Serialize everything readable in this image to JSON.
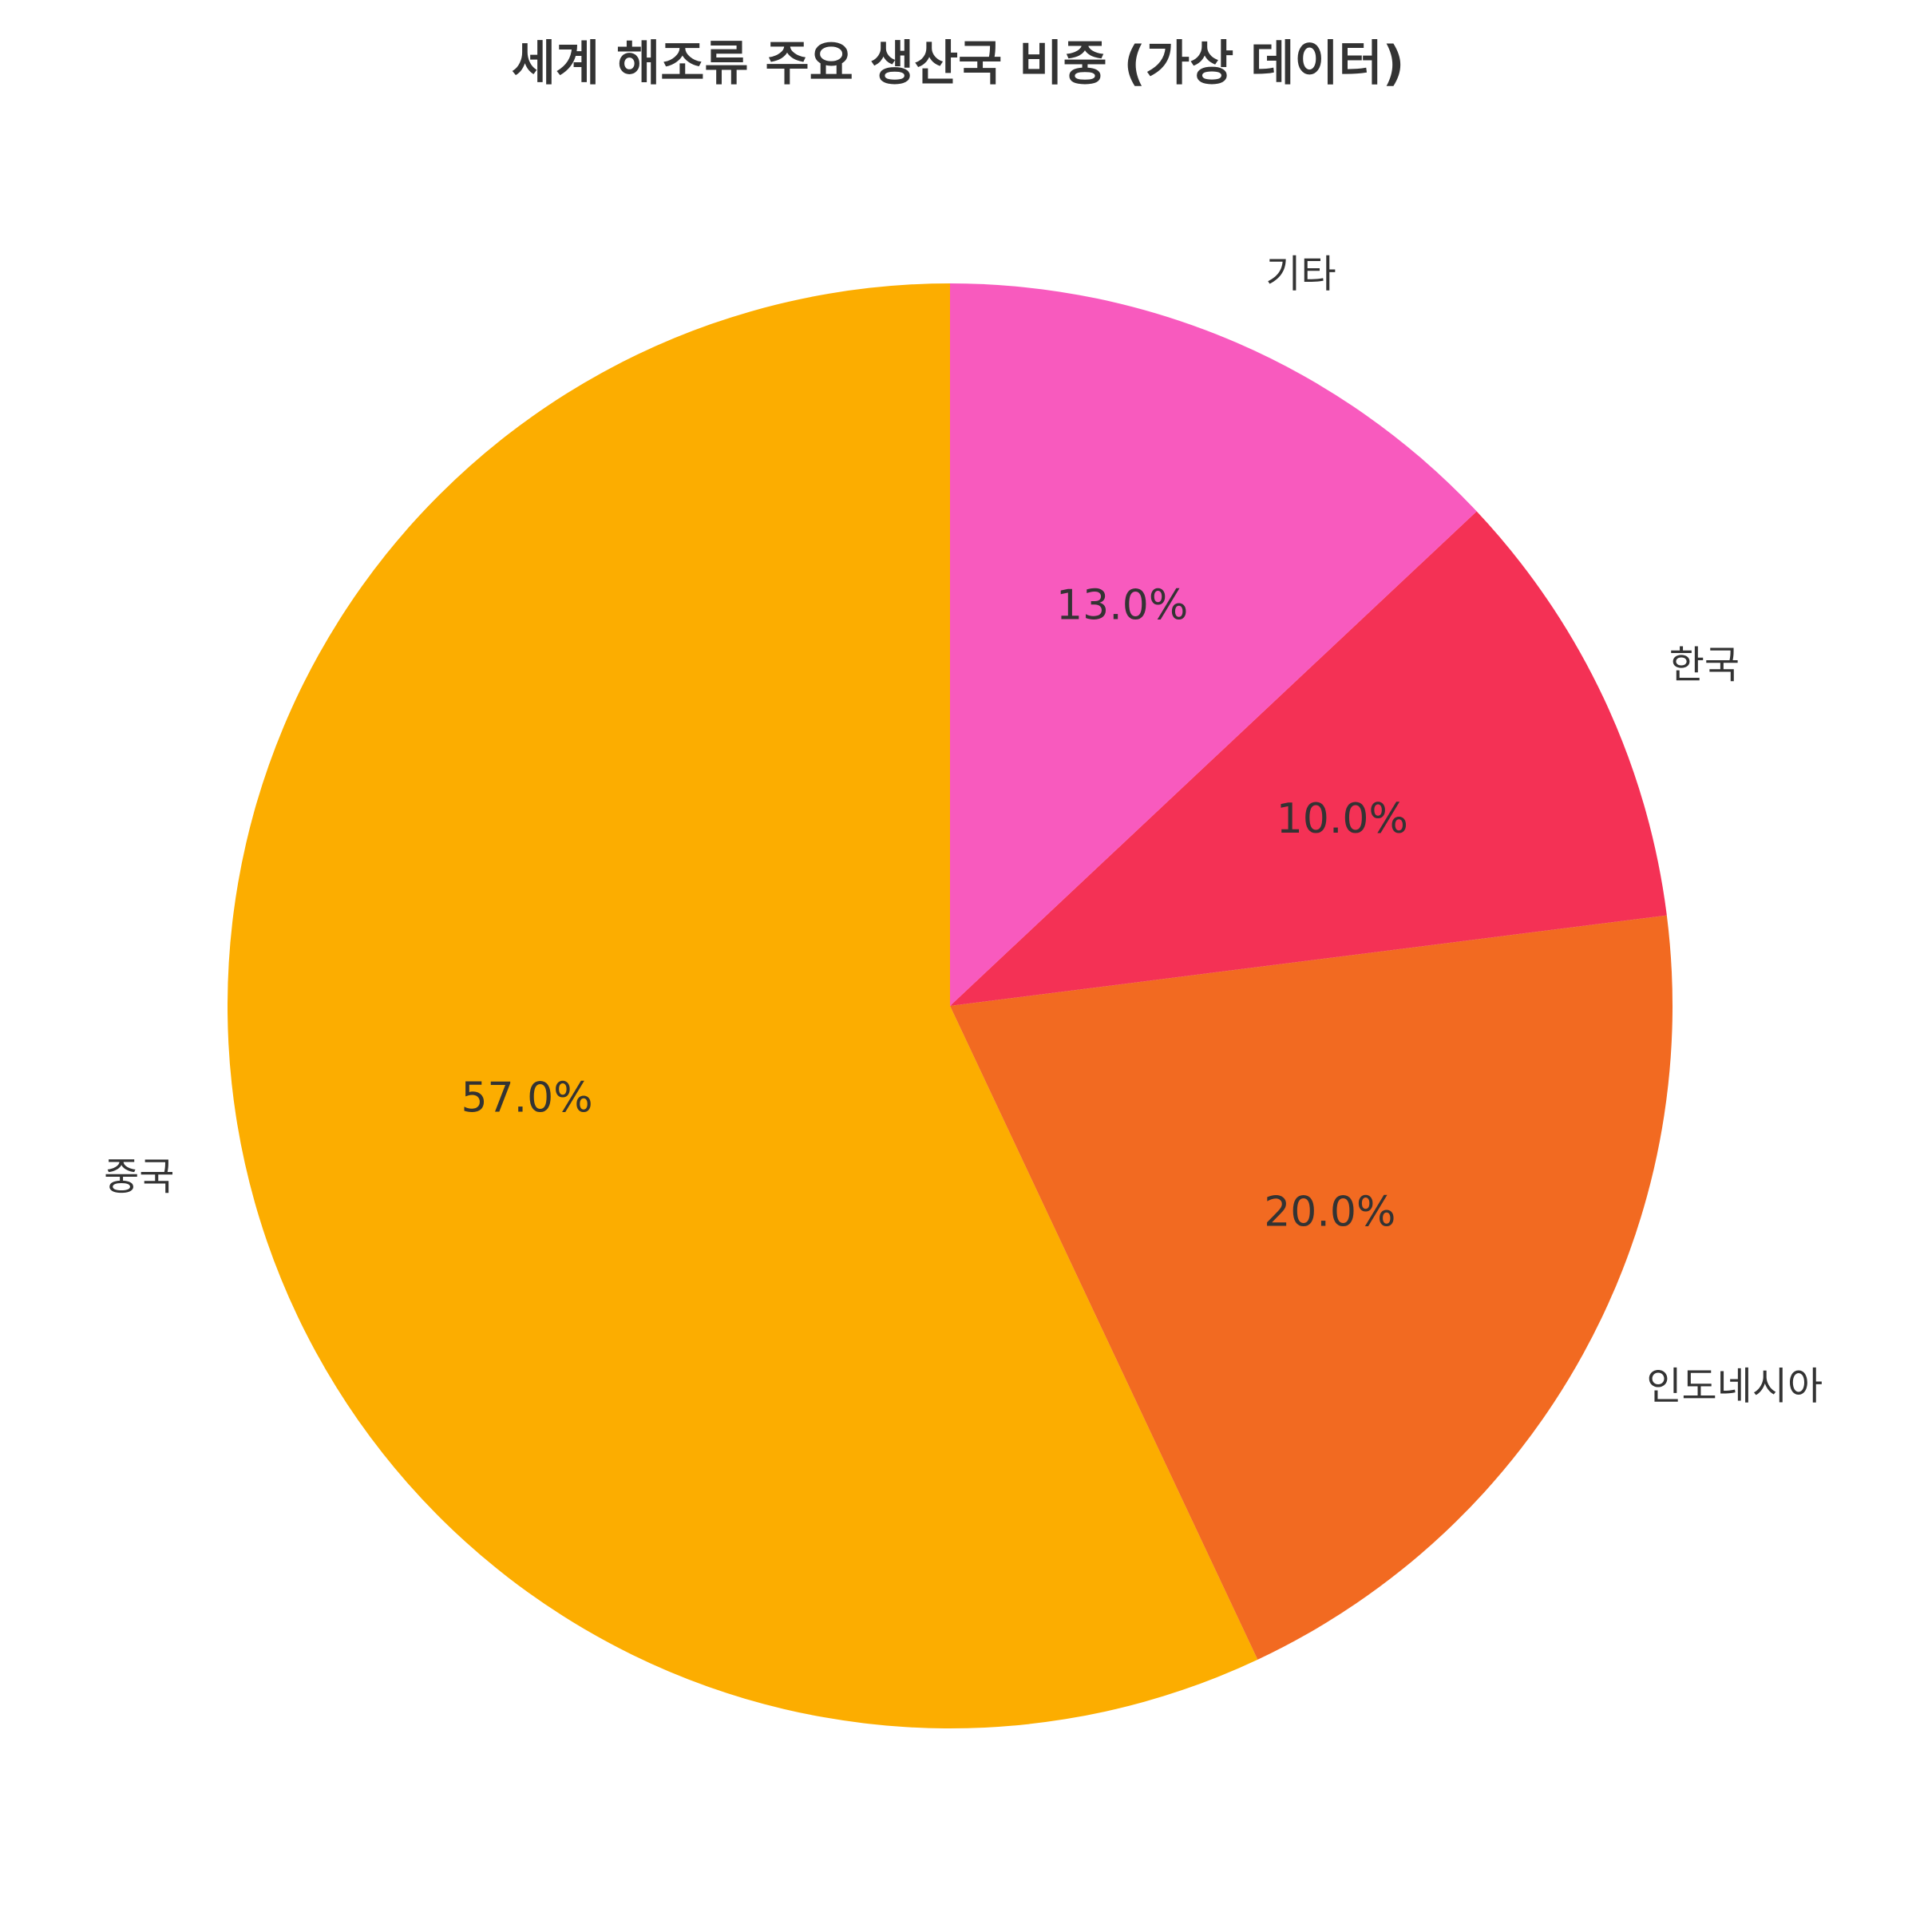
{
  "chart_data": {
    "type": "pie",
    "title": "세계 해조류 주요 생산국 비중 (가상 데이터)",
    "start_angle": "top",
    "direction": "counterclockwise",
    "slices": [
      {
        "label": "중국",
        "value": 57.0,
        "pct_label": "57.0%",
        "color": "#FCAD00"
      },
      {
        "label": "인도네시아",
        "value": 20.0,
        "pct_label": "20.0%",
        "color": "#F26A21"
      },
      {
        "label": "한국",
        "value": 10.0,
        "pct_label": "10.0%",
        "color": "#F43155"
      },
      {
        "label": "기타",
        "value": 13.0,
        "pct_label": "13.0%",
        "color": "#F85ABE"
      }
    ]
  }
}
